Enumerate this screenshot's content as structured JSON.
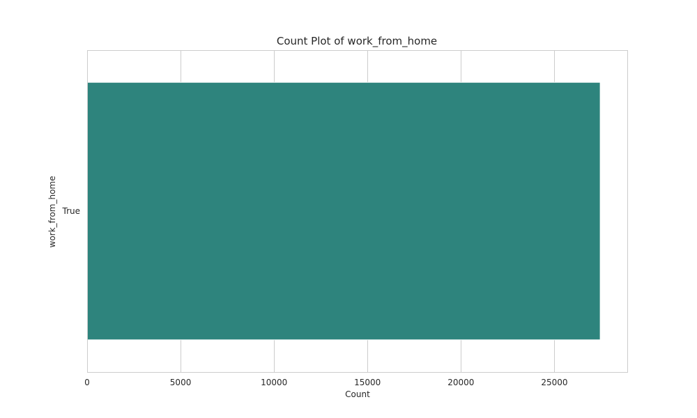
{
  "chart_data": {
    "type": "bar",
    "orientation": "horizontal",
    "title": "Count Plot of work_from_home",
    "xlabel": "Count",
    "ylabel": "work_from_home",
    "categories": [
      "True"
    ],
    "values": [
      27450
    ],
    "xlim": [
      0,
      28900
    ],
    "xticks": [
      0,
      5000,
      10000,
      15000,
      20000,
      25000
    ],
    "xtick_labels": [
      "0",
      "5000",
      "10000",
      "15000",
      "20000",
      "25000"
    ],
    "grid": true,
    "bar_color": "#2e847d",
    "grid_color": "#cccccc"
  }
}
